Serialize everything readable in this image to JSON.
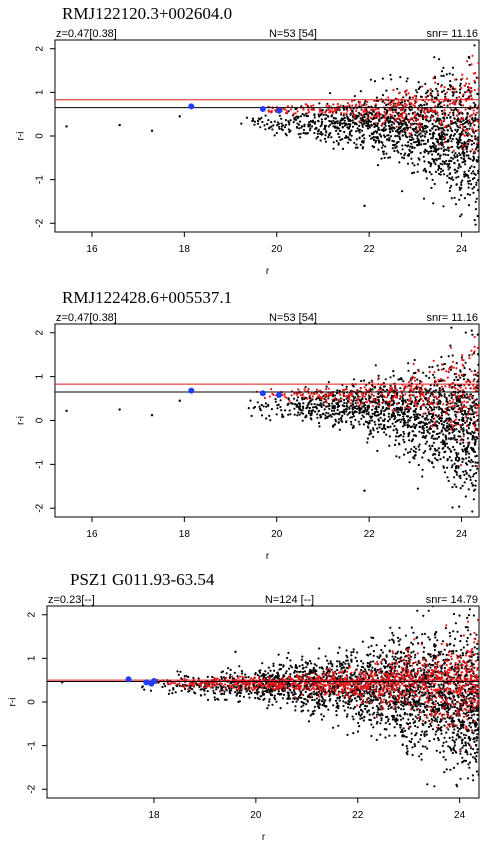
{
  "chart_data": [
    {
      "type": "scatter",
      "title": "RMJ122120.3+002604.0",
      "top_left": "z=0.47[0.38]",
      "top_center": "N=53 [54]",
      "top_right": "snr= 11.16",
      "xlabel": "r",
      "ylabel": "r-i",
      "xlim": [
        15.2,
        24.4
      ],
      "ylim": [
        -2.2,
        2.2
      ],
      "xticks": [
        16,
        18,
        20,
        22,
        24
      ],
      "yticks": [
        -2,
        -1,
        0,
        1,
        2
      ],
      "hlines": [
        {
          "name": "red",
          "y": 0.83,
          "color": "#e31a1c"
        },
        {
          "name": "black",
          "y": 0.65,
          "color": "#000000"
        }
      ],
      "blue_points": [
        {
          "x": 18.15,
          "y": 0.68
        },
        {
          "x": 19.7,
          "y": 0.62
        },
        {
          "x": 20.05,
          "y": 0.58
        }
      ],
      "field_points": {
        "x_start": 19.2,
        "center": 0.3,
        "red_center": 0.6,
        "count_black": 1500,
        "count_red": 420
      },
      "isolated_points": [
        {
          "x": 15.45,
          "y": 0.22
        },
        {
          "x": 16.6,
          "y": 0.25
        },
        {
          "x": 17.3,
          "y": 0.12
        },
        {
          "x": 17.9,
          "y": 0.45
        },
        {
          "x": 21.9,
          "y": -1.6
        }
      ]
    },
    {
      "type": "scatter",
      "title": "RMJ122428.6+005537.1",
      "top_left": "z=0.47[0.38]",
      "top_center": "N=53 [54]",
      "top_right": "snr= 11.16",
      "xlabel": "r",
      "ylabel": "r-i",
      "xlim": [
        15.2,
        24.4
      ],
      "ylim": [
        -2.2,
        2.2
      ],
      "xticks": [
        16,
        18,
        20,
        22,
        24
      ],
      "yticks": [
        -2,
        -1,
        0,
        1,
        2
      ],
      "hlines": [
        {
          "name": "red",
          "y": 0.83,
          "color": "#e31a1c"
        },
        {
          "name": "black",
          "y": 0.65,
          "color": "#000000"
        }
      ],
      "blue_points": [
        {
          "x": 18.15,
          "y": 0.68
        },
        {
          "x": 19.7,
          "y": 0.62
        },
        {
          "x": 20.05,
          "y": 0.58
        }
      ],
      "field_points": {
        "x_start": 19.2,
        "center": 0.3,
        "red_center": 0.6,
        "count_black": 1500,
        "count_red": 420
      },
      "isolated_points": [
        {
          "x": 15.45,
          "y": 0.22
        },
        {
          "x": 16.6,
          "y": 0.25
        },
        {
          "x": 17.3,
          "y": 0.12
        },
        {
          "x": 17.9,
          "y": 0.45
        },
        {
          "x": 21.9,
          "y": -1.6
        }
      ]
    },
    {
      "type": "scatter",
      "title": "PSZ1 G011.93-63.54",
      "top_left": "z=0.23[--]",
      "top_center": "N=124 [--]",
      "top_right": "snr= 14.79",
      "xlabel": "r",
      "ylabel": "r-i",
      "xlim": [
        15.9,
        24.4
      ],
      "ylim": [
        -2.2,
        2.2
      ],
      "xticks": [
        18,
        20,
        22,
        24
      ],
      "yticks": [
        -2,
        -1,
        0,
        1,
        2
      ],
      "hlines": [
        {
          "name": "red",
          "y": 0.5,
          "color": "#e31a1c"
        },
        {
          "name": "black",
          "y": 0.47,
          "color": "#000000"
        }
      ],
      "blue_points": [
        {
          "x": 17.5,
          "y": 0.52
        },
        {
          "x": 17.85,
          "y": 0.45
        },
        {
          "x": 18.0,
          "y": 0.48
        },
        {
          "x": 17.95,
          "y": 0.42
        }
      ],
      "field_points": {
        "x_start": 17.6,
        "center": 0.38,
        "red_center": 0.42,
        "count_black": 2600,
        "count_red": 1200
      },
      "isolated_points": [
        {
          "x": 16.2,
          "y": 0.45
        },
        {
          "x": 19.6,
          "y": 1.15
        }
      ]
    }
  ]
}
